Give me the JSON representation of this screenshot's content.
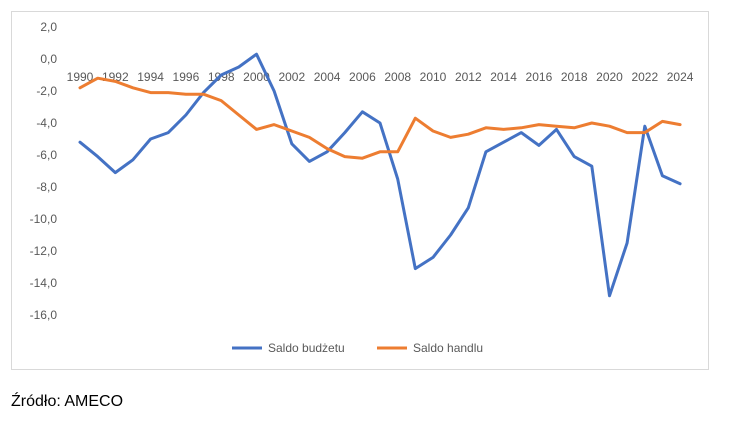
{
  "source_note": "Źródło: AMECO",
  "chart_data": {
    "type": "line",
    "title": "",
    "xlabel": "",
    "ylabel": "",
    "x": [
      1990,
      1991,
      1992,
      1993,
      1994,
      1995,
      1996,
      1997,
      1998,
      1999,
      2000,
      2001,
      2002,
      2003,
      2004,
      2005,
      2006,
      2007,
      2008,
      2009,
      2010,
      2011,
      2012,
      2013,
      2014,
      2015,
      2016,
      2017,
      2018,
      2019,
      2020,
      2021,
      2022,
      2023,
      2024
    ],
    "x_ticks": [
      1990,
      1992,
      1994,
      1996,
      1998,
      2000,
      2002,
      2004,
      2006,
      2008,
      2010,
      2012,
      2014,
      2016,
      2018,
      2020,
      2022,
      2024
    ],
    "y_ticks": [
      "2,0",
      "0,0",
      "-2,0",
      "-4,0",
      "-6,0",
      "-8,0",
      "-10,0",
      "-12,0",
      "-14,0",
      "-16,0"
    ],
    "ylim": [
      -16,
      2
    ],
    "grid": false,
    "legend_position": "bottom",
    "series": [
      {
        "name": "Saldo budżetu",
        "color": "#4472c4",
        "values": [
          -5.2,
          -6.1,
          -7.1,
          -6.3,
          -5.0,
          -4.6,
          -3.5,
          -2.1,
          -1.0,
          -0.5,
          0.3,
          -2.0,
          -5.3,
          -6.4,
          -5.8,
          -4.6,
          -3.3,
          -4.0,
          -7.5,
          -13.1,
          -12.4,
          -11.0,
          -9.3,
          -5.8,
          -5.2,
          -4.6,
          -5.4,
          -4.4,
          -6.1,
          -6.7,
          -14.8,
          -11.5,
          -4.2,
          -7.3,
          -7.8
        ]
      },
      {
        "name": "Saldo handlu",
        "color": "#ed7d31",
        "values": [
          -1.8,
          -1.2,
          -1.4,
          -1.8,
          -2.1,
          -2.1,
          -2.2,
          -2.2,
          -2.6,
          -3.5,
          -4.4,
          -4.1,
          -4.5,
          -4.9,
          -5.6,
          -6.1,
          -6.2,
          -5.8,
          -5.8,
          -3.7,
          -4.5,
          -4.9,
          -4.7,
          -4.3,
          -4.4,
          -4.3,
          -4.1,
          -4.2,
          -4.3,
          -4.0,
          -4.2,
          -4.6,
          -4.6,
          -3.9,
          -4.1
        ]
      }
    ]
  }
}
